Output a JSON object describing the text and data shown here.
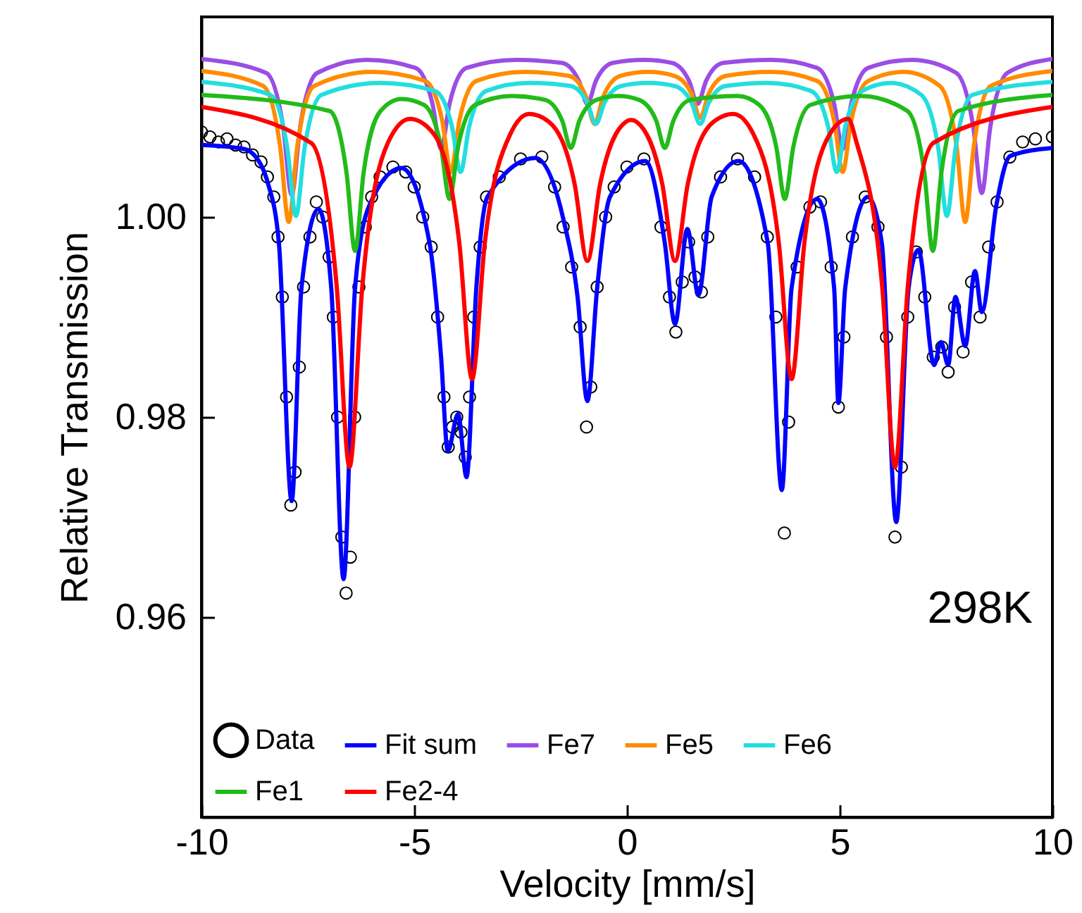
{
  "chart_data": {
    "type": "line",
    "xlabel": "Velocity [mm/s]",
    "ylabel": "Relative Transmission",
    "xlim": [
      -10,
      10
    ],
    "ylim": [
      0.94,
      1.02
    ],
    "xticks": [
      -10,
      -5,
      0,
      5,
      10
    ],
    "yticks": [
      0.96,
      0.98,
      {
        "value": 1,
        "label": "1.00"
      }
    ],
    "grid": false,
    "legend": "bottom left",
    "annotations": [
      "298K"
    ],
    "line_style": "solid",
    "series": [
      {
        "name": "Data",
        "type": "scatter",
        "marker": "circle",
        "color": "#000000",
        "x": [
          -10,
          -9.8,
          -9.6,
          -9.4,
          -9.2,
          -9,
          -8.8,
          -8.6,
          -8.45,
          -8.3,
          -8.2,
          -8.1,
          -8,
          -7.9,
          -7.8,
          -7.7,
          -7.6,
          -7.45,
          -7.3,
          -7.15,
          -7,
          -6.9,
          -6.8,
          -6.7,
          -6.6,
          -6.5,
          -6.4,
          -6.3,
          -6.15,
          -6,
          -5.8,
          -5.5,
          -5.2,
          -5,
          -4.8,
          -4.6,
          -4.45,
          -4.3,
          -4.2,
          -4.1,
          -4,
          -3.9,
          -3.8,
          -3.7,
          -3.6,
          -3.45,
          -3.3,
          -3,
          -2.5,
          -2,
          -1.7,
          -1.5,
          -1.3,
          -1.1,
          -0.95,
          -0.85,
          -0.7,
          -0.5,
          -0.3,
          0,
          0.4,
          0.8,
          1,
          1.15,
          1.3,
          1.45,
          1.6,
          1.75,
          1.9,
          2.2,
          2.6,
          3,
          3.3,
          3.5,
          3.7,
          3.8,
          4,
          4.3,
          4.55,
          4.8,
          4.97,
          5.1,
          5.3,
          5.6,
          5.9,
          6.1,
          6.3,
          6.45,
          6.6,
          6.8,
          7,
          7.2,
          7.4,
          7.55,
          7.7,
          7.9,
          8.1,
          8.3,
          8.5,
          8.7,
          9,
          9.3,
          9.6,
          10
        ],
        "values": [
          1.0085,
          1.008,
          1.0075,
          1.0078,
          1.0072,
          1.007,
          1.0062,
          1.0055,
          1.004,
          1.002,
          0.998,
          0.992,
          0.982,
          0.9712,
          0.9745,
          0.985,
          0.993,
          0.998,
          1.0015,
          1.0,
          0.996,
          0.99,
          0.98,
          0.968,
          0.9624,
          0.966,
          0.98,
          0.993,
          0.999,
          1.002,
          1.004,
          1.005,
          1.0045,
          1.003,
          1.0,
          0.997,
          0.99,
          0.982,
          0.977,
          0.979,
          0.98,
          0.9785,
          0.976,
          0.982,
          0.99,
          0.997,
          1.002,
          1.004,
          1.0058,
          1.006,
          1.003,
          0.999,
          0.995,
          0.989,
          0.979,
          0.983,
          0.993,
          1.0,
          1.003,
          1.005,
          1.0058,
          0.999,
          0.992,
          0.9885,
          0.9935,
          0.9975,
          0.994,
          0.9925,
          0.998,
          1.004,
          1.0058,
          1.004,
          0.998,
          0.99,
          0.9684,
          0.9795,
          0.995,
          1.001,
          1.0015,
          0.995,
          0.981,
          0.988,
          0.998,
          1.002,
          0.999,
          0.988,
          0.968,
          0.975,
          0.99,
          0.9965,
          0.992,
          0.986,
          0.987,
          0.9845,
          0.991,
          0.9865,
          0.9935,
          0.99,
          0.997,
          1.0015,
          1.006,
          1.0075,
          1.0078,
          1.008
        ]
      },
      {
        "name": "Fit sum",
        "color": "#0000ff",
        "x": [
          -10,
          -9,
          -8.6,
          -8.44,
          -8.18,
          -7.88,
          -7.65,
          -7.25,
          -6.95,
          -6.66,
          -6.39,
          -6.06,
          -5.3,
          -4.64,
          -4.37,
          -4.21,
          -3.97,
          -3.77,
          -3.54,
          -3.28,
          -2.15,
          -1.49,
          -1.16,
          -0.93,
          -0.7,
          -0.4,
          0.43,
          0.89,
          1.13,
          1.42,
          1.68,
          1.99,
          2.62,
          3.31,
          3.64,
          3.87,
          4.47,
          4.87,
          4.97,
          5.13,
          5.66,
          5.99,
          6.33,
          6.62,
          6.85,
          7.22,
          7.38,
          7.55,
          7.72,
          7.95,
          8.18,
          8.34,
          8.68,
          9.01,
          10
        ],
        "values": [
          1.0072,
          1.0068,
          1.0052,
          1.0034,
          0.9974,
          0.9716,
          0.9929,
          1.0008,
          0.9929,
          0.9638,
          0.9929,
          1.0011,
          1.0049,
          0.9974,
          0.9861,
          0.9766,
          0.9803,
          0.974,
          0.9929,
          1.002,
          1.0059,
          0.9997,
          0.992,
          0.9816,
          0.9929,
          1.002,
          1.0056,
          0.9974,
          0.9893,
          0.9988,
          0.9922,
          1.002,
          1.0056,
          0.9974,
          0.9727,
          0.9929,
          1.0018,
          0.9929,
          0.9814,
          0.9929,
          1.002,
          0.9974,
          0.9695,
          0.9929,
          0.9967,
          0.9852,
          0.9875,
          0.9852,
          0.992,
          0.9871,
          0.9946,
          0.9905,
          1.0011,
          1.0061,
          1.0069
        ]
      },
      {
        "name": "Fe7",
        "color": "#9b4de6",
        "x": [
          -10,
          -8.48,
          -8.08,
          -7.88,
          -7.68,
          -7.28,
          -6.1,
          -4.97,
          -4.57,
          -4.37,
          -4.17,
          -3.77,
          -2.6,
          -1.53,
          -1.13,
          -0.93,
          -0.73,
          -0.33,
          0.4,
          1.06,
          1.46,
          1.66,
          1.86,
          2.26,
          3.4,
          4.47,
          4.87,
          5.07,
          5.27,
          5.67,
          6.7,
          7.74,
          8.14,
          8.34,
          8.54,
          8.94,
          10
        ],
        "values": [
          1.0158,
          1.0144,
          1.009,
          1.0022,
          1.009,
          1.0144,
          1.0157,
          1.0149,
          1.0113,
          1.0068,
          1.0113,
          1.0149,
          1.0157,
          1.0154,
          1.0136,
          1.0113,
          1.0136,
          1.0154,
          1.0157,
          1.0154,
          1.0136,
          1.0113,
          1.0136,
          1.0154,
          1.0157,
          1.0149,
          1.0113,
          1.0068,
          1.0113,
          1.0149,
          1.0157,
          1.0144,
          1.009,
          1.0024,
          1.009,
          1.0144,
          1.0158
        ]
      },
      {
        "name": "Fe5",
        "color": "#ff8c00",
        "x": [
          -10,
          -8.55,
          -8.15,
          -7.95,
          -7.75,
          -7.35,
          -6,
          -4.74,
          -4.34,
          -4.14,
          -3.94,
          -3.54,
          -2.4,
          -1.36,
          -0.96,
          -0.76,
          -0.56,
          -0.16,
          0.5,
          1.12,
          1.52,
          1.72,
          1.92,
          2.32,
          3.4,
          4.47,
          4.87,
          5.07,
          5.27,
          5.67,
          6.5,
          7.35,
          7.75,
          7.95,
          8.15,
          8.55,
          10
        ],
        "values": [
          1.0146,
          1.0131,
          1.007,
          0.9995,
          1.007,
          1.0131,
          1.0145,
          1.0136,
          1.0096,
          1.0045,
          1.0096,
          1.0136,
          1.0145,
          1.0141,
          1.012,
          1.0093,
          1.012,
          1.0141,
          1.0145,
          1.0141,
          1.0123,
          1.0099,
          1.0123,
          1.0141,
          1.0145,
          1.0136,
          1.0096,
          1.0045,
          1.0096,
          1.0136,
          1.0145,
          1.0131,
          1.007,
          0.9995,
          1.007,
          1.0131,
          1.0146
        ]
      },
      {
        "name": "Fe6",
        "color": "#22dede",
        "x": [
          -10,
          -8.38,
          -7.98,
          -7.78,
          -7.58,
          -7.18,
          -5.8,
          -4.51,
          -4.11,
          -3.91,
          -3.71,
          -3.31,
          -2.3,
          -1.33,
          -0.93,
          -0.73,
          -0.53,
          -0.13,
          0.5,
          1.12,
          1.52,
          1.72,
          1.92,
          2.32,
          3.3,
          4.33,
          4.73,
          4.93,
          5.13,
          5.53,
          6.2,
          6.92,
          7.32,
          7.52,
          7.72,
          8.12,
          10
        ],
        "values": [
          1.0135,
          1.0122,
          1.0068,
          1.0001,
          1.0068,
          1.0122,
          1.0134,
          1.0126,
          1.009,
          1.0045,
          1.009,
          1.0126,
          1.0134,
          1.0131,
          1.0114,
          1.0093,
          1.0114,
          1.0131,
          1.0134,
          1.0131,
          1.0114,
          1.0093,
          1.0114,
          1.0131,
          1.0134,
          1.0126,
          1.009,
          1.0045,
          1.009,
          1.0126,
          1.0134,
          1.0122,
          1.0068,
          1.0001,
          1.0068,
          1.0122,
          1.0135
        ]
      },
      {
        "name": "Fe1",
        "color": "#22bb1a",
        "x": [
          -10,
          -6.99,
          -6.59,
          -6.39,
          -6.19,
          -5.79,
          -5.3,
          -4.77,
          -4.37,
          -4.17,
          -3.97,
          -3.57,
          -2.7,
          -1.92,
          -1.52,
          -1.32,
          -1.12,
          -0.72,
          -0.2,
          0.29,
          0.69,
          0.89,
          1.09,
          1.49,
          2.6,
          3.11,
          3.51,
          3.71,
          3.91,
          4.31,
          5.5,
          6.59,
          6.99,
          7.19,
          7.39,
          7.79,
          10
        ],
        "values": [
          1.0122,
          1.0106,
          1.0044,
          0.9966,
          1.0044,
          1.0106,
          1.0118,
          1.0112,
          1.007,
          1.0018,
          1.007,
          1.0112,
          1.0121,
          1.0117,
          1.0096,
          1.0069,
          1.0096,
          1.0117,
          1.0121,
          1.0117,
          1.0096,
          1.0069,
          1.0096,
          1.0117,
          1.0121,
          1.0112,
          1.007,
          1.0018,
          1.007,
          1.0112,
          1.0121,
          1.0106,
          1.0044,
          0.9966,
          1.0044,
          1.0106,
          1.0122
        ]
      },
      {
        "name": "Fe2-4",
        "color": "#ff0000",
        "x": [
          -10,
          -7.42,
          -6.82,
          -6.52,
          -6.22,
          -5.62,
          -5.1,
          -4.54,
          -3.94,
          -3.64,
          -3.34,
          -2.74,
          -2.3,
          -1.83,
          -1.23,
          -0.93,
          -0.63,
          -0.03,
          0.1,
          0.23,
          0.83,
          1.13,
          1.43,
          2.03,
          2.5,
          2.97,
          3.57,
          3.87,
          4.17,
          4.77,
          5.2,
          5.4,
          6,
          6.3,
          6.6,
          7.2,
          10
        ],
        "values": [
          1.011,
          1.0074,
          0.993,
          0.975,
          0.993,
          1.0074,
          1.0098,
          1.0083,
          0.9974,
          0.9838,
          0.9974,
          1.0083,
          1.0103,
          1.0095,
          1.0033,
          0.9956,
          1.0033,
          1.0095,
          1.0097,
          1.0095,
          1.0033,
          0.9956,
          1.0033,
          1.0095,
          1.0103,
          1.0083,
          0.9974,
          0.9838,
          0.9974,
          1.0083,
          1.0098,
          1.0074,
          0.993,
          0.975,
          0.993,
          1.0074,
          1.011
        ]
      }
    ]
  }
}
